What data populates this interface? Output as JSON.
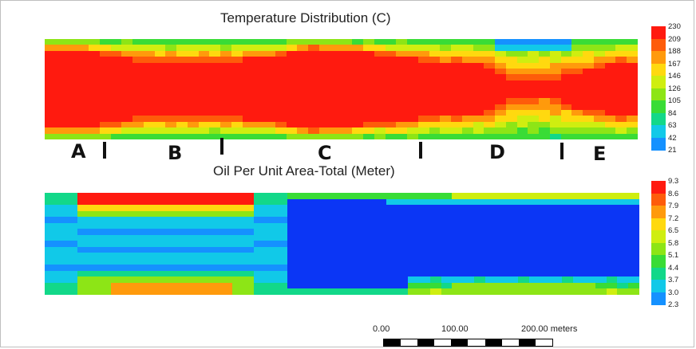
{
  "chart_data": [
    {
      "type": "heatmap",
      "title": "Temperature Distribution (C)",
      "colorbar_ticks": [
        "230",
        "209",
        "188",
        "167",
        "146",
        "126",
        "105",
        "84",
        "63",
        "42",
        "21"
      ],
      "colorbar_range": [
        21,
        230
      ],
      "section_labels": [
        "A",
        "B",
        "C",
        "D",
        "E"
      ],
      "profile_columns": [
        {
          "col": 0,
          "hot_fraction": 0.78
        },
        {
          "col": 4,
          "hot_fraction": 0.74
        },
        {
          "col": 8,
          "hot_fraction": 0.58
        },
        {
          "col": 12,
          "hot_fraction": 0.55
        },
        {
          "col": 16,
          "hot_fraction": 0.56
        },
        {
          "col": 20,
          "hot_fraction": 0.62
        },
        {
          "col": 24,
          "hot_fraction": 0.8
        },
        {
          "col": 28,
          "hot_fraction": 0.72
        },
        {
          "col": 32,
          "hot_fraction": 0.64
        },
        {
          "col": 36,
          "hot_fraction": 0.52
        },
        {
          "col": 40,
          "hot_fraction": 0.46
        },
        {
          "col": 42,
          "hot_fraction": 0.18
        },
        {
          "col": 45,
          "hot_fraction": 0.12
        },
        {
          "col": 48,
          "hot_fraction": 0.34
        },
        {
          "col": 52,
          "hot_fraction": 0.52
        },
        {
          "col": 53,
          "hot_fraction": 0.52
        }
      ]
    },
    {
      "type": "heatmap",
      "title": "Oil Per Unit Area-Total (Meter)",
      "colorbar_ticks": [
        "9.3",
        "8.6",
        "7.9",
        "7.2",
        "6.5",
        "5.8",
        "5.1",
        "4.4",
        "3.7",
        "3.0",
        "2.3"
      ],
      "colorbar_range": [
        2.3,
        9.3
      ]
    }
  ],
  "scale_bar": {
    "labels": [
      "0.00",
      "100.00",
      "200.00 meters"
    ]
  }
}
